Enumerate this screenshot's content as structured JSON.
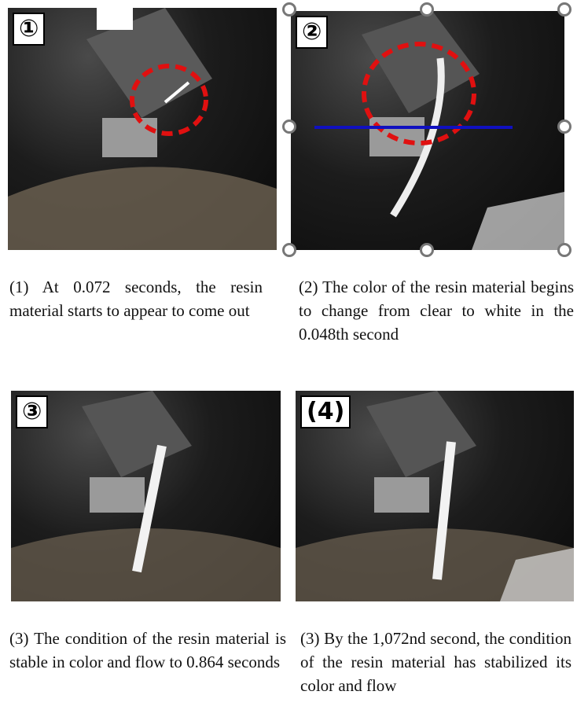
{
  "panels": [
    {
      "label": "①",
      "caption": "(1) At 0.072 seconds, the resin material starts to appear to come out"
    },
    {
      "label": "②",
      "caption": "(2) The color of the resin material begins to change from clear to white in the 0.048th second"
    },
    {
      "label": "③",
      "caption": "(3) The condition of the resin material is stable in color and flow to 0.864 seconds"
    },
    {
      "label": "(4)",
      "caption": "(3) By the 1,072nd second, the condition of the resin material has stabilized its color and flow"
    }
  ]
}
